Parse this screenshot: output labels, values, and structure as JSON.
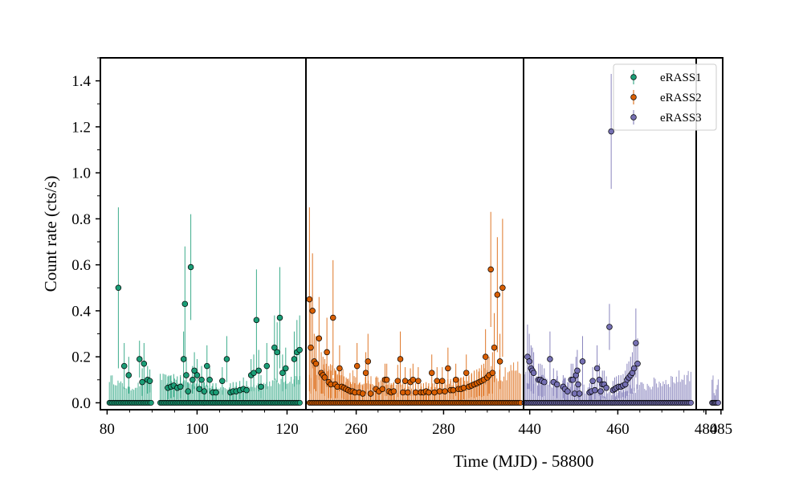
{
  "chart_data": {
    "type": "scatter",
    "title": "",
    "xlabel": "Time (MJD) - 58800",
    "ylabel": "Count rate (cts/s)",
    "ylim": [
      -0.03,
      1.5
    ],
    "yticks": [
      "0.0",
      "0.2",
      "0.4",
      "0.6",
      "0.8",
      "1.0",
      "1.2",
      "1.4"
    ],
    "grid": false,
    "legend_position": "top-right",
    "panels": [
      {
        "xlim": [
          78.5,
          124.2
        ],
        "xticks": [
          80,
          100,
          120
        ]
      },
      {
        "xlim": [
          248.5,
          298.3
        ],
        "xticks": [
          260,
          280
        ]
      },
      {
        "xlim": [
          438.6,
          477.8
        ],
        "xticks": [
          440,
          460,
          480
        ]
      },
      {
        "xlim": [
          477.8,
          485.5
        ],
        "xticks": [
          485
        ]
      }
    ],
    "series": [
      {
        "name": "eRASS1",
        "color": "#1b9e77",
        "panel": 0,
        "zero_ranges": [
          [
            80.5,
            89.8
          ],
          [
            91.8,
            123.0
          ]
        ],
        "zero_step": 0.32,
        "noise_err_range": [
          0.05,
          0.13
        ],
        "points": [
          {
            "x": 82.5,
            "y": 0.5,
            "e": 0.35
          },
          {
            "x": 83.8,
            "y": 0.16,
            "e": 0.1
          },
          {
            "x": 84.8,
            "y": 0.12,
            "e": 0.08
          },
          {
            "x": 87.2,
            "y": 0.19,
            "e": 0.08
          },
          {
            "x": 87.8,
            "y": 0.09,
            "e": 0.06
          },
          {
            "x": 88.2,
            "y": 0.17,
            "e": 0.09
          },
          {
            "x": 89.0,
            "y": 0.1,
            "e": 0.06
          },
          {
            "x": 89.5,
            "y": 0.095,
            "e": 0.05
          },
          {
            "x": 93.5,
            "y": 0.065,
            "e": 0.05
          },
          {
            "x": 94.2,
            "y": 0.07,
            "e": 0.05
          },
          {
            "x": 94.8,
            "y": 0.075,
            "e": 0.05
          },
          {
            "x": 95.6,
            "y": 0.065,
            "e": 0.05
          },
          {
            "x": 96.3,
            "y": 0.07,
            "e": 0.05
          },
          {
            "x": 97.0,
            "y": 0.19,
            "e": 0.12
          },
          {
            "x": 97.3,
            "y": 0.43,
            "e": 0.25
          },
          {
            "x": 97.6,
            "y": 0.12,
            "e": 0.08
          },
          {
            "x": 98.0,
            "y": 0.05,
            "e": 0.04
          },
          {
            "x": 98.6,
            "y": 0.59,
            "e": 0.23
          },
          {
            "x": 99.0,
            "y": 0.1,
            "e": 0.06
          },
          {
            "x": 99.4,
            "y": 0.14,
            "e": 0.08
          },
          {
            "x": 100.0,
            "y": 0.12,
            "e": 0.07
          },
          {
            "x": 100.5,
            "y": 0.06,
            "e": 0.05
          },
          {
            "x": 101.0,
            "y": 0.1,
            "e": 0.06
          },
          {
            "x": 101.6,
            "y": 0.05,
            "e": 0.04
          },
          {
            "x": 102.2,
            "y": 0.16,
            "e": 0.09
          },
          {
            "x": 102.8,
            "y": 0.1,
            "e": 0.06
          },
          {
            "x": 103.5,
            "y": 0.045,
            "e": 0.04
          },
          {
            "x": 104.2,
            "y": 0.045,
            "e": 0.04
          },
          {
            "x": 105.6,
            "y": 0.095,
            "e": 0.06
          },
          {
            "x": 106.6,
            "y": 0.19,
            "e": 0.1
          },
          {
            "x": 107.4,
            "y": 0.045,
            "e": 0.04
          },
          {
            "x": 108.0,
            "y": 0.05,
            "e": 0.04
          },
          {
            "x": 108.7,
            "y": 0.05,
            "e": 0.04
          },
          {
            "x": 109.5,
            "y": 0.055,
            "e": 0.04
          },
          {
            "x": 110.3,
            "y": 0.06,
            "e": 0.05
          },
          {
            "x": 111.0,
            "y": 0.055,
            "e": 0.04
          },
          {
            "x": 112.0,
            "y": 0.12,
            "e": 0.07
          },
          {
            "x": 112.6,
            "y": 0.13,
            "e": 0.08
          },
          {
            "x": 113.2,
            "y": 0.36,
            "e": 0.22
          },
          {
            "x": 113.7,
            "y": 0.14,
            "e": 0.09
          },
          {
            "x": 114.2,
            "y": 0.07,
            "e": 0.05
          },
          {
            "x": 115.5,
            "y": 0.16,
            "e": 0.1
          },
          {
            "x": 117.2,
            "y": 0.24,
            "e": 0.14
          },
          {
            "x": 117.8,
            "y": 0.22,
            "e": 0.13
          },
          {
            "x": 118.4,
            "y": 0.37,
            "e": 0.22
          },
          {
            "x": 119.0,
            "y": 0.13,
            "e": 0.08
          },
          {
            "x": 119.7,
            "y": 0.15,
            "e": 0.09
          },
          {
            "x": 121.6,
            "y": 0.19,
            "e": 0.12
          },
          {
            "x": 122.2,
            "y": 0.22,
            "e": 0.14
          },
          {
            "x": 122.8,
            "y": 0.23,
            "e": 0.15
          }
        ]
      },
      {
        "name": "eRASS2",
        "color": "#d95f02",
        "panel": 1,
        "zero_ranges": [
          [
            249.3,
            297.7
          ]
        ],
        "zero_step": 0.32,
        "noise_err_range": [
          0.03,
          0.2
        ],
        "points": [
          {
            "x": 249.3,
            "y": 0.45,
            "e": 0.4
          },
          {
            "x": 249.6,
            "y": 0.24,
            "e": 0.2
          },
          {
            "x": 250.0,
            "y": 0.4,
            "e": 0.25
          },
          {
            "x": 250.4,
            "y": 0.18,
            "e": 0.12
          },
          {
            "x": 250.8,
            "y": 0.17,
            "e": 0.12
          },
          {
            "x": 251.5,
            "y": 0.28,
            "e": 0.18
          },
          {
            "x": 252.0,
            "y": 0.13,
            "e": 0.09
          },
          {
            "x": 252.4,
            "y": 0.12,
            "e": 0.08
          },
          {
            "x": 252.8,
            "y": 0.11,
            "e": 0.08
          },
          {
            "x": 253.3,
            "y": 0.22,
            "e": 0.15
          },
          {
            "x": 253.7,
            "y": 0.09,
            "e": 0.07
          },
          {
            "x": 254.2,
            "y": 0.08,
            "e": 0.06
          },
          {
            "x": 254.7,
            "y": 0.37,
            "e": 0.25
          },
          {
            "x": 255.2,
            "y": 0.08,
            "e": 0.06
          },
          {
            "x": 255.7,
            "y": 0.07,
            "e": 0.05
          },
          {
            "x": 256.2,
            "y": 0.15,
            "e": 0.1
          },
          {
            "x": 256.7,
            "y": 0.07,
            "e": 0.05
          },
          {
            "x": 257.2,
            "y": 0.065,
            "e": 0.05
          },
          {
            "x": 257.7,
            "y": 0.06,
            "e": 0.05
          },
          {
            "x": 258.2,
            "y": 0.055,
            "e": 0.05
          },
          {
            "x": 258.7,
            "y": 0.05,
            "e": 0.04
          },
          {
            "x": 259.2,
            "y": 0.05,
            "e": 0.04
          },
          {
            "x": 259.7,
            "y": 0.045,
            "e": 0.04
          },
          {
            "x": 260.2,
            "y": 0.16,
            "e": 0.1
          },
          {
            "x": 260.7,
            "y": 0.045,
            "e": 0.04
          },
          {
            "x": 261.5,
            "y": 0.04,
            "e": 0.04
          },
          {
            "x": 262.2,
            "y": 0.13,
            "e": 0.09
          },
          {
            "x": 262.7,
            "y": 0.18,
            "e": 0.12
          },
          {
            "x": 263.3,
            "y": 0.04,
            "e": 0.04
          },
          {
            "x": 264.5,
            "y": 0.06,
            "e": 0.05
          },
          {
            "x": 265.2,
            "y": 0.05,
            "e": 0.04
          },
          {
            "x": 266.0,
            "y": 0.06,
            "e": 0.05
          },
          {
            "x": 266.6,
            "y": 0.1,
            "e": 0.07
          },
          {
            "x": 267.0,
            "y": 0.1,
            "e": 0.07
          },
          {
            "x": 267.5,
            "y": 0.05,
            "e": 0.04
          },
          {
            "x": 268.0,
            "y": 0.045,
            "e": 0.04
          },
          {
            "x": 268.6,
            "y": 0.05,
            "e": 0.04
          },
          {
            "x": 269.5,
            "y": 0.095,
            "e": 0.07
          },
          {
            "x": 270.1,
            "y": 0.19,
            "e": 0.12
          },
          {
            "x": 270.7,
            "y": 0.045,
            "e": 0.04
          },
          {
            "x": 271.2,
            "y": 0.095,
            "e": 0.06
          },
          {
            "x": 271.8,
            "y": 0.045,
            "e": 0.04
          },
          {
            "x": 272.4,
            "y": 0.09,
            "e": 0.06
          },
          {
            "x": 273.0,
            "y": 0.1,
            "e": 0.07
          },
          {
            "x": 273.6,
            "y": 0.045,
            "e": 0.04
          },
          {
            "x": 274.2,
            "y": 0.095,
            "e": 0.06
          },
          {
            "x": 274.8,
            "y": 0.045,
            "e": 0.04
          },
          {
            "x": 275.4,
            "y": 0.045,
            "e": 0.04
          },
          {
            "x": 276.0,
            "y": 0.05,
            "e": 0.04
          },
          {
            "x": 276.6,
            "y": 0.045,
            "e": 0.04
          },
          {
            "x": 277.3,
            "y": 0.13,
            "e": 0.08
          },
          {
            "x": 277.9,
            "y": 0.045,
            "e": 0.04
          },
          {
            "x": 278.5,
            "y": 0.095,
            "e": 0.06
          },
          {
            "x": 279.1,
            "y": 0.05,
            "e": 0.04
          },
          {
            "x": 279.7,
            "y": 0.095,
            "e": 0.06
          },
          {
            "x": 280.3,
            "y": 0.05,
            "e": 0.04
          },
          {
            "x": 281.0,
            "y": 0.15,
            "e": 0.09
          },
          {
            "x": 281.6,
            "y": 0.055,
            "e": 0.04
          },
          {
            "x": 282.2,
            "y": 0.055,
            "e": 0.04
          },
          {
            "x": 282.8,
            "y": 0.1,
            "e": 0.07
          },
          {
            "x": 283.4,
            "y": 0.06,
            "e": 0.05
          },
          {
            "x": 284.0,
            "y": 0.06,
            "e": 0.05
          },
          {
            "x": 284.6,
            "y": 0.065,
            "e": 0.05
          },
          {
            "x": 285.2,
            "y": 0.13,
            "e": 0.08
          },
          {
            "x": 285.8,
            "y": 0.07,
            "e": 0.05
          },
          {
            "x": 286.4,
            "y": 0.075,
            "e": 0.05
          },
          {
            "x": 287.0,
            "y": 0.08,
            "e": 0.06
          },
          {
            "x": 287.6,
            "y": 0.085,
            "e": 0.06
          },
          {
            "x": 288.2,
            "y": 0.09,
            "e": 0.06
          },
          {
            "x": 288.7,
            "y": 0.095,
            "e": 0.07
          },
          {
            "x": 289.2,
            "y": 0.1,
            "e": 0.07
          },
          {
            "x": 289.6,
            "y": 0.2,
            "e": 0.12
          },
          {
            "x": 290.0,
            "y": 0.11,
            "e": 0.08
          },
          {
            "x": 290.4,
            "y": 0.12,
            "e": 0.08
          },
          {
            "x": 290.8,
            "y": 0.58,
            "e": 0.25
          },
          {
            "x": 291.2,
            "y": 0.13,
            "e": 0.09
          },
          {
            "x": 291.6,
            "y": 0.24,
            "e": 0.15
          },
          {
            "x": 292.3,
            "y": 0.47,
            "e": 0.25
          },
          {
            "x": 292.9,
            "y": 0.18,
            "e": 0.12
          },
          {
            "x": 293.5,
            "y": 0.5,
            "e": 0.3
          }
        ]
      },
      {
        "name": "eRASS3",
        "color": "#7570b3",
        "panel": 2,
        "zero_ranges": [
          [
            438.8,
            476.8
          ],
          [
            482.4,
            484.2
          ]
        ],
        "zero_step": 0.3,
        "noise_err_range": [
          0.02,
          0.16
        ],
        "points": [
          {
            "x": 439.5,
            "y": 0.2,
            "e": 0.14
          },
          {
            "x": 439.9,
            "y": 0.18,
            "e": 0.12
          },
          {
            "x": 440.3,
            "y": 0.15,
            "e": 0.1
          },
          {
            "x": 440.6,
            "y": 0.14,
            "e": 0.1
          },
          {
            "x": 440.9,
            "y": 0.13,
            "e": 0.09
          },
          {
            "x": 442.0,
            "y": 0.1,
            "e": 0.07
          },
          {
            "x": 442.4,
            "y": 0.1,
            "e": 0.07
          },
          {
            "x": 442.8,
            "y": 0.095,
            "e": 0.07
          },
          {
            "x": 443.3,
            "y": 0.09,
            "e": 0.06
          },
          {
            "x": 444.6,
            "y": 0.19,
            "e": 0.12
          },
          {
            "x": 445.4,
            "y": 0.09,
            "e": 0.06
          },
          {
            "x": 446.2,
            "y": 0.08,
            "e": 0.06
          },
          {
            "x": 447.6,
            "y": 0.07,
            "e": 0.05
          },
          {
            "x": 448.0,
            "y": 0.06,
            "e": 0.05
          },
          {
            "x": 448.6,
            "y": 0.05,
            "e": 0.04
          },
          {
            "x": 449.4,
            "y": 0.1,
            "e": 0.07
          },
          {
            "x": 449.8,
            "y": 0.1,
            "e": 0.07
          },
          {
            "x": 450.2,
            "y": 0.04,
            "e": 0.04
          },
          {
            "x": 450.5,
            "y": 0.12,
            "e": 0.08
          },
          {
            "x": 450.8,
            "y": 0.14,
            "e": 0.09
          },
          {
            "x": 451.0,
            "y": 0.08,
            "e": 0.06
          },
          {
            "x": 451.3,
            "y": 0.04,
            "e": 0.04
          },
          {
            "x": 452.0,
            "y": 0.18,
            "e": 0.11
          },
          {
            "x": 453.6,
            "y": 0.045,
            "e": 0.04
          },
          {
            "x": 454.0,
            "y": 0.05,
            "e": 0.04
          },
          {
            "x": 454.3,
            "y": 0.095,
            "e": 0.06
          },
          {
            "x": 454.8,
            "y": 0.055,
            "e": 0.04
          },
          {
            "x": 455.3,
            "y": 0.15,
            "e": 0.1
          },
          {
            "x": 455.8,
            "y": 0.1,
            "e": 0.07
          },
          {
            "x": 456.1,
            "y": 0.05,
            "e": 0.04
          },
          {
            "x": 456.5,
            "y": 0.08,
            "e": 0.06
          },
          {
            "x": 456.9,
            "y": 0.08,
            "e": 0.06
          },
          {
            "x": 457.4,
            "y": 0.065,
            "e": 0.05
          },
          {
            "x": 458.1,
            "y": 0.33,
            "e": 0.1
          },
          {
            "x": 458.5,
            "y": 1.18,
            "e": 0.25
          },
          {
            "x": 458.9,
            "y": 0.055,
            "e": 0.04
          },
          {
            "x": 459.3,
            "y": 0.06,
            "e": 0.05
          },
          {
            "x": 459.7,
            "y": 0.065,
            "e": 0.05
          },
          {
            "x": 460.2,
            "y": 0.07,
            "e": 0.05
          },
          {
            "x": 460.7,
            "y": 0.07,
            "e": 0.05
          },
          {
            "x": 461.2,
            "y": 0.075,
            "e": 0.05
          },
          {
            "x": 461.7,
            "y": 0.08,
            "e": 0.06
          },
          {
            "x": 462.1,
            "y": 0.1,
            "e": 0.07
          },
          {
            "x": 462.5,
            "y": 0.11,
            "e": 0.07
          },
          {
            "x": 462.9,
            "y": 0.12,
            "e": 0.08
          },
          {
            "x": 463.3,
            "y": 0.13,
            "e": 0.09
          },
          {
            "x": 463.7,
            "y": 0.15,
            "e": 0.1
          },
          {
            "x": 464.1,
            "y": 0.26,
            "e": 0.15
          },
          {
            "x": 464.5,
            "y": 0.17,
            "e": 0.11
          }
        ]
      }
    ]
  }
}
